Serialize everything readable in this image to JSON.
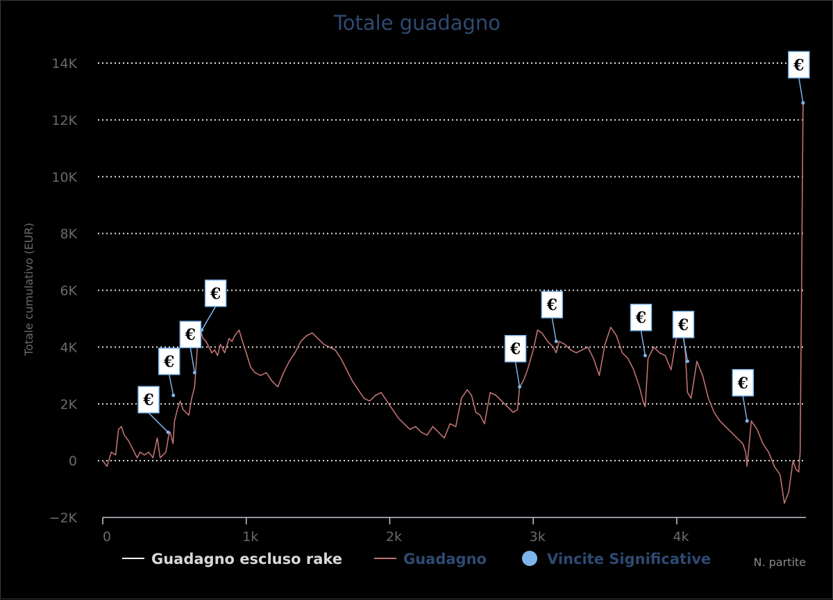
{
  "chart_data": {
    "type": "line",
    "title": "Totale guadagno",
    "xlabel": "N. partite",
    "ylabel": "Totale cumulativo (EUR)",
    "xlim": [
      0,
      4900
    ],
    "ylim": [
      -2000,
      14000
    ],
    "x_ticks": [
      0,
      1000,
      2000,
      3000,
      4000
    ],
    "x_tick_labels": [
      "0",
      "1k",
      "2k",
      "3k",
      "4k"
    ],
    "y_ticks": [
      -2000,
      0,
      2000,
      4000,
      6000,
      8000,
      10000,
      12000,
      14000
    ],
    "y_tick_labels": [
      "−2K",
      "0",
      "2K",
      "4K",
      "6K",
      "8K",
      "10K",
      "12K",
      "14K"
    ],
    "grid": "horizontal-dotted",
    "legend_position": "bottom",
    "colors": {
      "guadagno": "#c17272",
      "escluso": "#ffffff",
      "vincite": "#7cb5ec",
      "title": "#2e4a72"
    },
    "series": [
      {
        "name": "Guadagno",
        "x": [
          0,
          30,
          60,
          90,
          110,
          130,
          150,
          180,
          210,
          240,
          260,
          290,
          320,
          350,
          380,
          400,
          420,
          440,
          460,
          470,
          490,
          500,
          520,
          540,
          560,
          580,
          600,
          620,
          640,
          660,
          680,
          700,
          720,
          740,
          760,
          780,
          800,
          820,
          850,
          880,
          900,
          920,
          950,
          980,
          1000,
          1030,
          1060,
          1100,
          1140,
          1180,
          1220,
          1260,
          1300,
          1340,
          1380,
          1420,
          1460,
          1500,
          1540,
          1580,
          1620,
          1660,
          1700,
          1740,
          1780,
          1820,
          1860,
          1900,
          1940,
          1980,
          2020,
          2060,
          2100,
          2140,
          2180,
          2220,
          2260,
          2300,
          2340,
          2380,
          2420,
          2460,
          2500,
          2540,
          2570,
          2600,
          2630,
          2660,
          2700,
          2740,
          2780,
          2820,
          2860,
          2890,
          2905,
          2930,
          2960,
          3000,
          3030,
          3060,
          3100,
          3140,
          3160,
          3180,
          3220,
          3260,
          3300,
          3340,
          3380,
          3420,
          3460,
          3500,
          3540,
          3580,
          3620,
          3660,
          3700,
          3740,
          3770,
          3780,
          3800,
          3840,
          3880,
          3920,
          3960,
          4000,
          4040,
          4060,
          4075,
          4100,
          4140,
          4180,
          4220,
          4260,
          4300,
          4340,
          4380,
          4420,
          4460,
          4480,
          4490,
          4520,
          4560,
          4600,
          4640,
          4680,
          4720,
          4750,
          4780,
          4810,
          4830,
          4850,
          4860,
          4870,
          4875,
          4880
        ],
        "y": [
          0,
          -200,
          300,
          200,
          1100,
          1200,
          900,
          700,
          400,
          100,
          300,
          200,
          300,
          100,
          800,
          100,
          200,
          300,
          900,
          1000,
          600,
          1400,
          1800,
          2100,
          1800,
          1700,
          1600,
          2200,
          2600,
          4000,
          4600,
          4300,
          4200,
          4000,
          3800,
          3900,
          3700,
          4100,
          3800,
          4300,
          4200,
          4400,
          4600,
          4100,
          3800,
          3300,
          3100,
          3000,
          3100,
          2800,
          2600,
          3100,
          3500,
          3800,
          4200,
          4400,
          4500,
          4300,
          4100,
          4000,
          3900,
          3600,
          3200,
          2800,
          2500,
          2200,
          2100,
          2300,
          2400,
          2100,
          1800,
          1500,
          1300,
          1100,
          1200,
          1000,
          900,
          1200,
          1000,
          800,
          1300,
          1200,
          2200,
          2500,
          2300,
          1700,
          1600,
          1300,
          2400,
          2300,
          2100,
          1900,
          1700,
          1800,
          2600,
          2800,
          3200,
          3900,
          4600,
          4500,
          4200,
          4000,
          3800,
          4200,
          4100,
          3900,
          3800,
          3900,
          4000,
          3600,
          3000,
          4100,
          4700,
          4400,
          3800,
          3600,
          3200,
          2600,
          2000,
          1900,
          3600,
          4000,
          3800,
          3700,
          3200,
          4400,
          4700,
          3800,
          2400,
          2200,
          3500,
          3000,
          2200,
          1700,
          1400,
          1200,
          1000,
          800,
          600,
          300,
          -200,
          1400,
          1100,
          600,
          300,
          -200,
          -500,
          -1500,
          -1100,
          0,
          -300,
          -400,
          300,
          6300,
          9500,
          12600
        ]
      }
    ],
    "vincite_significative": [
      {
        "x": 455,
        "y": 1000
      },
      {
        "x": 492,
        "y": 2300
      },
      {
        "x": 640,
        "y": 3100
      },
      {
        "x": 690,
        "y": 4600
      },
      {
        "x": 2905,
        "y": 2600
      },
      {
        "x": 3160,
        "y": 4200
      },
      {
        "x": 3780,
        "y": 3700
      },
      {
        "x": 4075,
        "y": 3500
      },
      {
        "x": 4490,
        "y": 1400
      },
      {
        "x": 4880,
        "y": 12600
      }
    ],
    "flag_symbol": "€",
    "legend": [
      {
        "label": "Guadagno escluso rake",
        "kind": "line",
        "color": "#ffffff"
      },
      {
        "label": "Guadagno",
        "kind": "line",
        "color": "#c17272"
      },
      {
        "label": "Vincite Significative",
        "kind": "dot",
        "color": "#7cb5ec"
      }
    ]
  }
}
